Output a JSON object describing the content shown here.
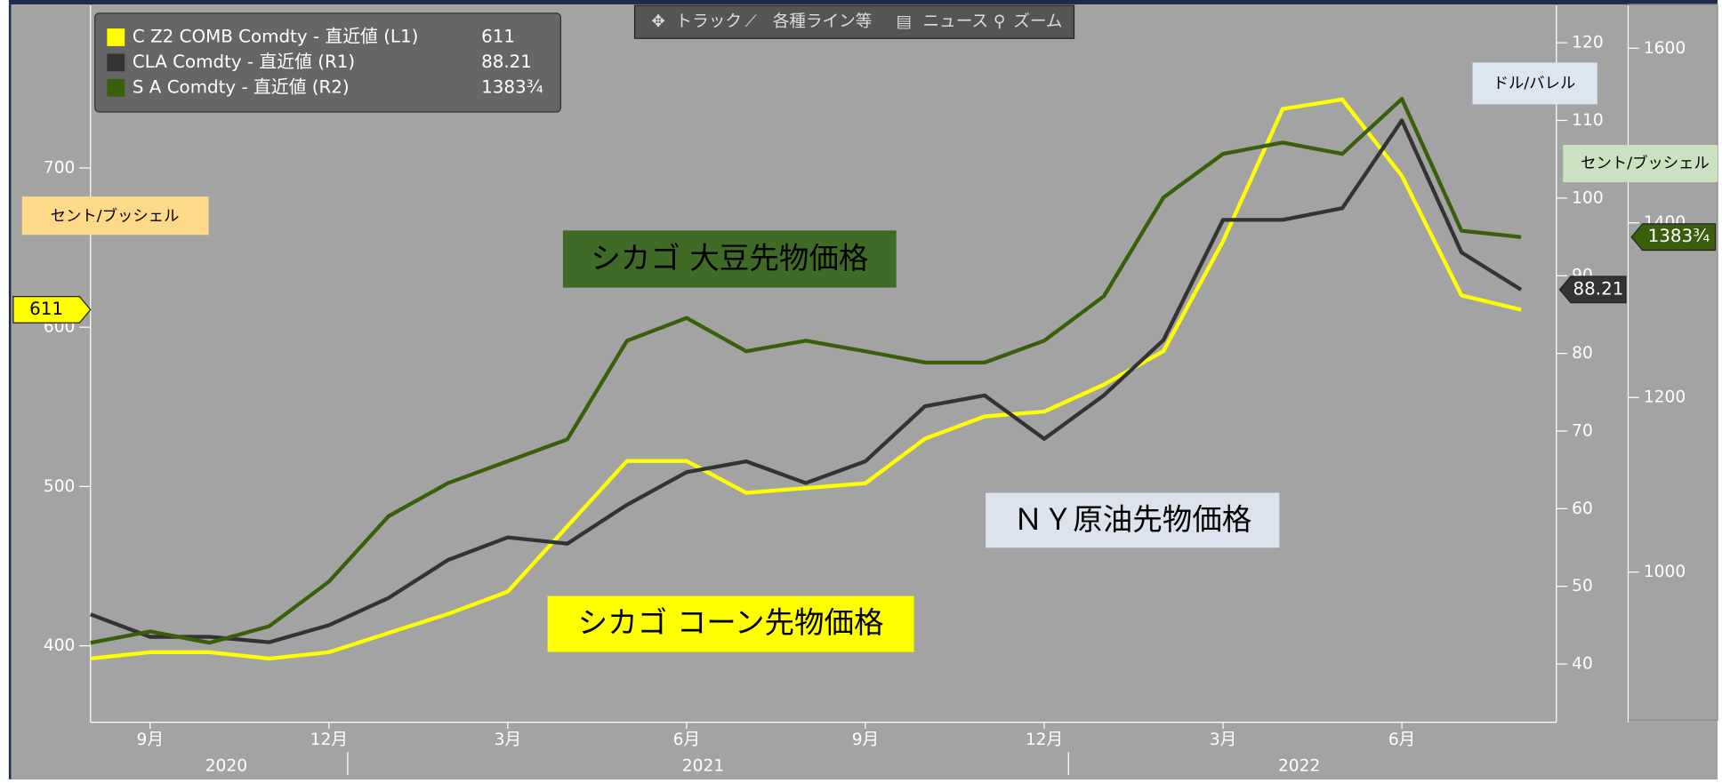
{
  "chart_data": {
    "type": "line",
    "x": [
      "2020-08",
      "2020-09",
      "2020-10",
      "2020-11",
      "2020-12",
      "2021-01",
      "2021-02",
      "2021-03",
      "2021-04",
      "2021-05",
      "2021-06",
      "2021-07",
      "2021-08",
      "2021-09",
      "2021-10",
      "2021-11",
      "2021-12",
      "2022-01",
      "2022-02",
      "2022-03",
      "2022-04",
      "2022-05",
      "2022-06",
      "2022-07",
      "2022-08"
    ],
    "xticks": [
      {
        "value": "2020-09",
        "label": "9月"
      },
      {
        "value": "2020-12",
        "label": "12月"
      },
      {
        "value": "2021-03",
        "label": "3月"
      },
      {
        "value": "2021-06",
        "label": "6月"
      },
      {
        "value": "2021-09",
        "label": "9月"
      },
      {
        "value": "2021-12",
        "label": "12月"
      },
      {
        "value": "2022-03",
        "label": "3月"
      },
      {
        "value": "2022-06",
        "label": "6月"
      }
    ],
    "year_labels": [
      {
        "value": "2020-10",
        "label": "2020"
      },
      {
        "value": "2021-06",
        "label": "2021"
      },
      {
        "value": "2022-04",
        "label": "2022"
      }
    ],
    "series": [
      {
        "name": "C Z2 COMB Comdty - 直近値 (L1)",
        "color": "#ffff00",
        "axis": "y",
        "values": [
          392,
          396,
          396,
          392,
          396,
          408,
          420,
          434,
          475,
          516,
          516,
          496,
          499,
          502,
          530,
          544,
          547,
          564,
          585,
          654,
          737,
          743,
          695,
          620,
          611
        ]
      },
      {
        "name": "CLA Comdty - 直近値 (R1)",
        "color": "#333333",
        "axis": "y2",
        "values": [
          46.4,
          43.5,
          43.5,
          42.8,
          45,
          48.5,
          53.4,
          56.3,
          55.5,
          60.5,
          64.7,
          66.1,
          63.3,
          66.1,
          73.2,
          74.6,
          69,
          74.6,
          81.7,
          97.2,
          97.2,
          98.7,
          110,
          93,
          88.21
        ]
      },
      {
        "name": "S A Comdty - 直近値 (R2)",
        "color": "#3a5f0b",
        "axis": "y3",
        "values": [
          919,
          932,
          919,
          938,
          989,
          1064,
          1102,
          1127,
          1152,
          1265,
          1291,
          1253,
          1265,
          1253,
          1240,
          1240,
          1265,
          1316,
          1429,
          1479,
          1492,
          1479,
          1542,
          1391,
          1383.75
        ],
        "last_label": "1383¾"
      }
    ],
    "ylim": [
      352,
      802
    ],
    "yticks": [
      400,
      500,
      600,
      700
    ],
    "y2lim": [
      32.5,
      124.8
    ],
    "y2ticks": [
      40,
      50,
      60,
      70,
      80,
      90,
      100,
      110,
      120
    ],
    "y3lim": [
      828,
      1649
    ],
    "y3ticks": [
      1000,
      1200,
      1400,
      1600
    ],
    "annotations": [
      "シカゴ 大豆先物価格",
      "ＮＹ原油先物価格",
      "シカゴ コーン先物価格"
    ],
    "unit_labels": [
      "セント/ブッシェル",
      "ドル/バレル",
      "セント/ブッシェル"
    ]
  },
  "toolbar": [
    "トラック",
    "各種ライン等",
    "ニュース",
    "ズーム"
  ]
}
